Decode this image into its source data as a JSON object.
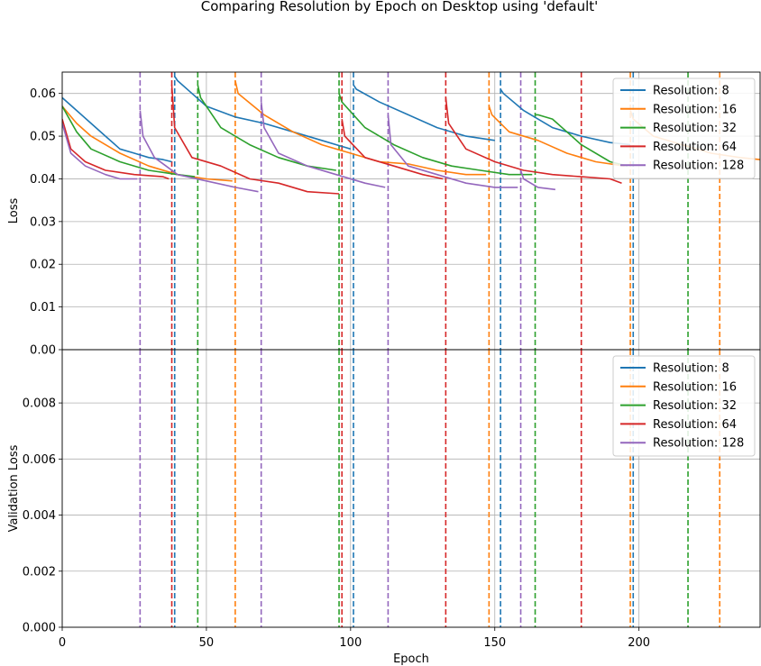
{
  "chart_data": {
    "type": "line",
    "title": "Comparing Resolution by Epoch on Desktop using 'default'",
    "xlabel": "Epoch",
    "xlim": [
      0,
      242
    ],
    "xticks": [
      0,
      50,
      100,
      150,
      200
    ],
    "grid": true,
    "colors": {
      "Resolution: 8": "#1f77b4",
      "Resolution: 16": "#ff7f0e",
      "Resolution: 32": "#2ca02c",
      "Resolution: 64": "#d62728",
      "Resolution: 128": "#9467bd"
    },
    "series": [
      {
        "name": "Resolution: 8",
        "segments": [
          {
            "x": [
              0,
              5,
              10,
              15,
              20,
              25,
              30,
              35,
              38
            ],
            "y": [
              0.059,
              0.056,
              0.053,
              0.05,
              0.047,
              0.046,
              0.045,
              0.0445,
              0.044
            ]
          },
          {
            "x": [
              39,
              40,
              45,
              50,
              60,
              70,
              80,
              90,
              100
            ],
            "y": [
              0.064,
              0.063,
              0.06,
              0.057,
              0.0545,
              0.053,
              0.051,
              0.049,
              0.047
            ]
          },
          {
            "x": [
              101,
              102,
              110,
              120,
              130,
              140,
              150
            ],
            "y": [
              0.062,
              0.061,
              0.058,
              0.055,
              0.052,
              0.05,
              0.049
            ]
          },
          {
            "x": [
              152,
              153,
              160,
              170,
              180,
              190,
              197
            ],
            "y": [
              0.061,
              0.06,
              0.056,
              0.052,
              0.05,
              0.0485,
              0.048
            ]
          }
        ],
        "transitions": [
          39,
          101,
          152,
          198
        ]
      },
      {
        "name": "Resolution: 16",
        "segments": [
          {
            "x": [
              0,
              5,
              10,
              20,
              30,
              40,
              50,
              59
            ],
            "y": [
              0.057,
              0.053,
              0.05,
              0.046,
              0.043,
              0.041,
              0.04,
              0.0395
            ]
          },
          {
            "x": [
              60,
              61,
              70,
              80,
              90,
              100,
              110,
              120,
              130,
              140,
              147
            ],
            "y": [
              0.063,
              0.06,
              0.055,
              0.051,
              0.048,
              0.046,
              0.044,
              0.0435,
              0.042,
              0.041,
              0.041
            ]
          },
          {
            "x": [
              148,
              149,
              155,
              165,
              175,
              185,
              195
            ],
            "y": [
              0.057,
              0.055,
              0.051,
              0.049,
              0.046,
              0.044,
              0.043
            ]
          },
          {
            "x": [
              197,
              198,
              205,
              215,
              225,
              235,
              242
            ],
            "y": [
              0.056,
              0.054,
              0.05,
              0.048,
              0.046,
              0.045,
              0.0445
            ]
          }
        ],
        "transitions": [
          60,
          148,
          197,
          228
        ]
      },
      {
        "name": "Resolution: 32",
        "segments": [
          {
            "x": [
              0,
              5,
              10,
              20,
              30,
              40,
              46
            ],
            "y": [
              0.057,
              0.051,
              0.047,
              0.044,
              0.042,
              0.041,
              0.0405
            ]
          },
          {
            "x": [
              47,
              48,
              55,
              65,
              75,
              85,
              95
            ],
            "y": [
              0.062,
              0.059,
              0.052,
              0.048,
              0.045,
              0.043,
              0.042
            ]
          },
          {
            "x": [
              96,
              97,
              105,
              115,
              125,
              135,
              145,
              155,
              163
            ],
            "y": [
              0.06,
              0.058,
              0.052,
              0.048,
              0.045,
              0.043,
              0.042,
              0.041,
              0.041
            ]
          },
          {
            "x": [
              164,
              165,
              170,
              175,
              180,
              190,
              196
            ],
            "y": [
              0.055,
              0.055,
              0.054,
              0.051,
              0.048,
              0.044,
              0.043
            ]
          }
        ],
        "transitions": [
          47,
          96,
          164,
          217
        ]
      },
      {
        "name": "Resolution: 64",
        "segments": [
          {
            "x": [
              0,
              3,
              8,
              15,
              25,
              35,
              37
            ],
            "y": [
              0.054,
              0.047,
              0.044,
              0.042,
              0.041,
              0.0405,
              0.04
            ]
          },
          {
            "x": [
              38,
              39,
              45,
              55,
              65,
              75,
              85,
              96
            ],
            "y": [
              0.062,
              0.052,
              0.045,
              0.043,
              0.04,
              0.039,
              0.037,
              0.0365
            ]
          },
          {
            "x": [
              97,
              98,
              105,
              115,
              125,
              132
            ],
            "y": [
              0.054,
              0.05,
              0.045,
              0.043,
              0.041,
              0.04
            ]
          },
          {
            "x": [
              133,
              134,
              140,
              150,
              160,
              170,
              180,
              190,
              194
            ],
            "y": [
              0.059,
              0.053,
              0.047,
              0.044,
              0.042,
              0.041,
              0.0405,
              0.04,
              0.039
            ]
          }
        ],
        "transitions": [
          38,
          97,
          133,
          180
        ]
      },
      {
        "name": "Resolution: 128",
        "segments": [
          {
            "x": [
              0,
              3,
              8,
              15,
              20,
              26
            ],
            "y": [
              0.053,
              0.046,
              0.043,
              0.041,
              0.04,
              0.04
            ]
          },
          {
            "x": [
              27,
              28,
              32,
              36,
              40,
              50,
              60,
              68
            ],
            "y": [
              0.056,
              0.05,
              0.045,
              0.043,
              0.041,
              0.0395,
              0.038,
              0.037
            ]
          },
          {
            "x": [
              69,
              70,
              75,
              85,
              95,
              105,
              112
            ],
            "y": [
              0.058,
              0.052,
              0.046,
              0.043,
              0.041,
              0.039,
              0.038
            ]
          },
          {
            "x": [
              113,
              114,
              120,
              130,
              140,
              150,
              158
            ],
            "y": [
              0.055,
              0.048,
              0.043,
              0.041,
              0.039,
              0.038,
              0.038
            ]
          },
          {
            "x": [
              159,
              160,
              165,
              171
            ],
            "y": [
              0.042,
              0.04,
              0.038,
              0.0375
            ]
          }
        ],
        "transitions": [
          27,
          69,
          113,
          159
        ]
      }
    ],
    "subplots": [
      {
        "ylabel": "Loss",
        "ylim": [
          0,
          0.065
        ],
        "yticks": [
          "0.00",
          "0.01",
          "0.02",
          "0.03",
          "0.04",
          "0.05",
          "0.06"
        ],
        "yvalues": [
          0,
          0.01,
          0.02,
          0.03,
          0.04,
          0.05,
          0.06
        ],
        "legend": "top-right"
      },
      {
        "ylabel": "Validation Loss",
        "ylim": [
          0,
          0.0099
        ],
        "yticks": [
          "0.000",
          "0.002",
          "0.004",
          "0.006",
          "0.008"
        ],
        "yvalues": [
          0,
          0.002,
          0.004,
          0.006,
          0.008
        ],
        "legend": "top-right"
      }
    ]
  }
}
